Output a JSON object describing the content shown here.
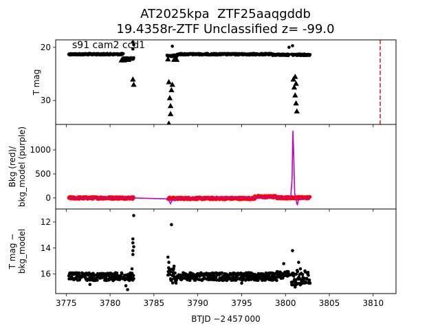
{
  "title_line1": "AT2025kpa  ZTF25aaqgddb",
  "title_line2": "19.4358r-ZTF Unclassified z= -99.0",
  "chart_data": [
    {
      "type": "scatter",
      "panel": "top",
      "ylabel": "T mag",
      "annotation": "s91 cam2 ccd1",
      "ylim": [
        34.5,
        18.6
      ],
      "inverted_y": true,
      "yticks": [
        20,
        30
      ],
      "xlim": [
        3773.8,
        3812.6
      ],
      "vline": {
        "x": 3810.8,
        "style": "dashed",
        "color": "#d62728"
      },
      "series": [
        {
          "marker": "circle",
          "color": "#000000",
          "segments": [
            {
              "x0": 3775.3,
              "x1": 3781.5,
              "y": 21.3
            },
            {
              "x0": 3781.5,
              "x1": 3782.7,
              "y": 22.1
            },
            {
              "x0": 3786.5,
              "x1": 3787.6,
              "y": 21.6
            },
            {
              "x0": 3787.6,
              "x1": 3798.5,
              "y": 21.3
            },
            {
              "x0": 3798.5,
              "x1": 3800.4,
              "y": 21.4
            },
            {
              "x0": 3800.7,
              "x1": 3802.8,
              "y": 21.4
            }
          ],
          "outliers": [
            [
              3782.6,
              19.0
            ],
            [
              3782.7,
              19.5
            ],
            [
              3782.6,
              20.3
            ],
            [
              3787.1,
              19.8
            ],
            [
              3800.4,
              20.0
            ],
            [
              3800.8,
              19.7
            ]
          ]
        },
        {
          "marker": "triangle",
          "color": "#000000",
          "points": [
            [
              3781.3,
              22.4
            ],
            [
              3781.6,
              22.4
            ],
            [
              3782.1,
              22.3
            ],
            [
              3782.4,
              22.1
            ],
            [
              3782.6,
              26.0
            ],
            [
              3782.7,
              27.0
            ],
            [
              3786.6,
              22.2
            ],
            [
              3786.7,
              26.5
            ],
            [
              3786.8,
              29.5
            ],
            [
              3786.9,
              31.0
            ],
            [
              3786.9,
              32.5
            ],
            [
              3786.7,
              34.3
            ],
            [
              3787.0,
              28.0
            ],
            [
              3787.1,
              27.0
            ],
            [
              3787.3,
              22.3
            ],
            [
              3787.5,
              22.2
            ],
            [
              3787.6,
              22.3
            ],
            [
              3800.9,
              26.0
            ],
            [
              3801.0,
              27.5
            ],
            [
              3801.1,
              29.0
            ],
            [
              3801.2,
              30.5
            ],
            [
              3801.3,
              32.0
            ],
            [
              3801.1,
              25.5
            ],
            [
              3801.2,
              26.8
            ]
          ]
        }
      ]
    },
    {
      "type": "line",
      "panel": "middle",
      "ylabel": "Bkg (red)/\nbkg_model (purple)",
      "ylim": [
        -230,
        1530
      ],
      "yticks": [
        0,
        500,
        1000
      ],
      "xlim": [
        3773.8,
        3812.6
      ],
      "series": [
        {
          "role": "bkg",
          "color": "#ff0000",
          "marker": "circle",
          "segments": [
            {
              "x0": 3775.3,
              "x1": 3782.7,
              "y": 0,
              "jitter": 25
            },
            {
              "x0": 3786.6,
              "x1": 3796.5,
              "y": -10,
              "jitter": 25
            },
            {
              "x0": 3796.5,
              "x1": 3799.0,
              "y": 25,
              "jitter": 25
            },
            {
              "x0": 3799.0,
              "x1": 3802.8,
              "y": 5,
              "jitter": 25
            }
          ]
        },
        {
          "role": "bkg_model",
          "color": "#bf00bf",
          "points": [
            [
              3775.3,
              0
            ],
            [
              3782.7,
              0
            ],
            [
              3786.6,
              -20
            ],
            [
              3786.9,
              -120
            ],
            [
              3787.1,
              -30
            ],
            [
              3787.4,
              -60
            ],
            [
              3787.6,
              -10
            ],
            [
              3796.5,
              5
            ],
            [
              3798.0,
              20
            ],
            [
              3799.5,
              5
            ],
            [
              3800.6,
              10
            ],
            [
              3800.75,
              400
            ],
            [
              3800.85,
              1400
            ],
            [
              3800.95,
              800
            ],
            [
              3801.05,
              100
            ],
            [
              3801.2,
              -40
            ],
            [
              3801.35,
              -150
            ],
            [
              3801.5,
              -20
            ],
            [
              3802.8,
              0
            ]
          ]
        }
      ]
    },
    {
      "type": "scatter",
      "panel": "bottom",
      "ylabel": "T mag −\nbkg_model",
      "xlabel": "BTJD −2 457 000",
      "ylim": [
        17.5,
        11.0
      ],
      "inverted_y": true,
      "yticks": [
        12,
        14,
        16
      ],
      "xlim": [
        3773.8,
        3812.6
      ],
      "xticks": [
        3775,
        3780,
        3785,
        3790,
        3795,
        3800,
        3805,
        3810
      ],
      "series": [
        {
          "marker": "circle",
          "color": "#000000",
          "segments": [
            {
              "x0": 3775.3,
              "x1": 3782.7,
              "y": 16.2,
              "jitter": 0.3
            },
            {
              "x0": 3786.6,
              "x1": 3787.6,
              "y": 16.1,
              "jitter": 0.6
            },
            {
              "x0": 3787.6,
              "x1": 3799.0,
              "y": 16.2,
              "jitter": 0.3
            },
            {
              "x0": 3799.0,
              "x1": 3800.4,
              "y": 16.1,
              "jitter": 0.3
            },
            {
              "x0": 3800.6,
              "x1": 3802.8,
              "y": 16.3,
              "jitter": 0.6
            }
          ],
          "outliers": [
            [
              3782.7,
              11.5
            ],
            [
              3782.6,
              13.3
            ],
            [
              3782.6,
              13.6
            ],
            [
              3782.7,
              13.9
            ],
            [
              3782.6,
              14.2
            ],
            [
              3782.6,
              14.5
            ],
            [
              3782.5,
              15.6
            ],
            [
              3787.0,
              12.2
            ],
            [
              3786.6,
              14.7
            ],
            [
              3786.7,
              15.1
            ],
            [
              3787.2,
              15.7
            ],
            [
              3787.3,
              15.4
            ],
            [
              3799.8,
              15.2
            ],
            [
              3800.8,
              14.2
            ],
            [
              3801.5,
              15.1
            ],
            [
              3801.7,
              15.6
            ],
            [
              3802.0,
              16.6
            ],
            [
              3801.1,
              17.0
            ],
            [
              3777.7,
              16.8
            ],
            [
              3781.8,
              16.9
            ],
            [
              3782.0,
              17.2
            ],
            [
              3795.0,
              16.7
            ]
          ]
        }
      ]
    }
  ]
}
